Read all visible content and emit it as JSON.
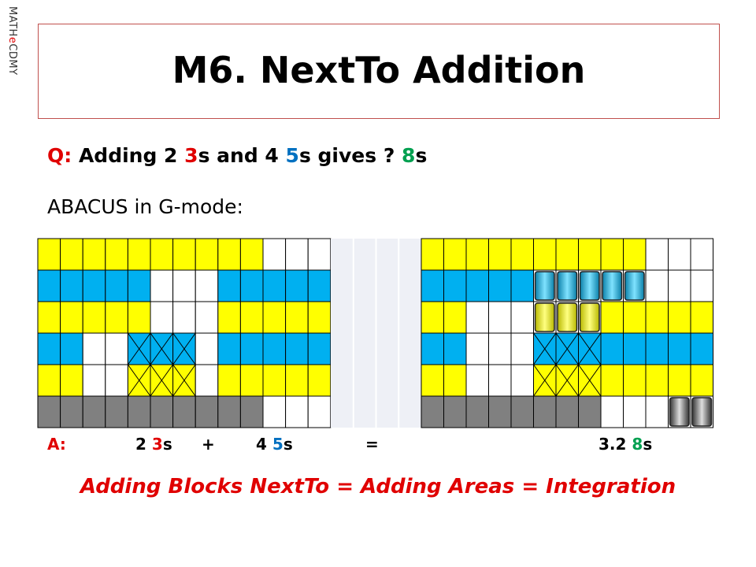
{
  "side_label": [
    "MATH",
    "e",
    "CDMY"
  ],
  "title": "M6. NextTo Addition",
  "question": [
    "Q:",
    " Adding 2 ",
    "3",
    "s and 4 ",
    "5",
    "s gives ? ",
    "8",
    "s"
  ],
  "prompt": "ABACUS in G-mode:",
  "answer": {
    "label": "A:",
    "left": [
      "2 ",
      "3",
      "s"
    ],
    "plus": "+",
    "right": [
      "4 ",
      "5",
      "s"
    ],
    "equals": "=",
    "result": [
      "3.2 ",
      "8",
      "s"
    ]
  },
  "footer": "Adding Blocks NextTo = Adding Areas = Integration"
}
